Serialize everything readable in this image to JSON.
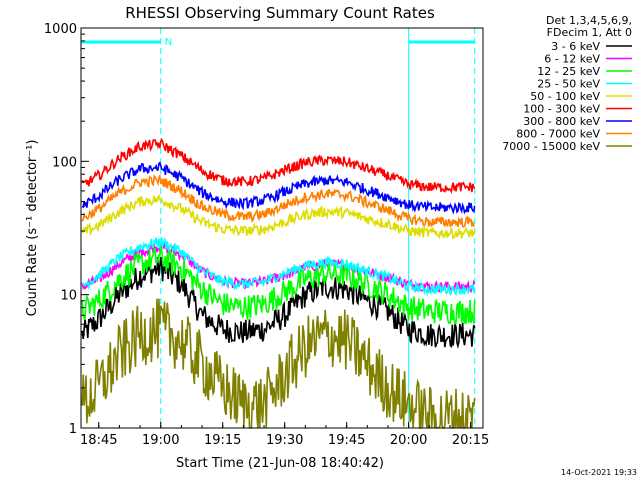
{
  "chart_data": {
    "type": "line",
    "title": "RHESSI Observing Summary Count Rates",
    "xlabel": "Start Time (21-Jun-08 18:40:42)",
    "ylabel": "Count Rate (s⁻¹ detector⁻¹)",
    "yscale": "log",
    "ylim": [
      1,
      1000
    ],
    "xlim": [
      "18:40:42",
      "20:18:00"
    ],
    "x_ticks": [
      "18:45",
      "19:00",
      "19:15",
      "19:30",
      "19:45",
      "20:00",
      "20:15"
    ],
    "y_ticks": [
      "1",
      "10",
      "100",
      "1000"
    ],
    "legend_header": [
      "Det 1,3,4,5,6,9,",
      "FDecim 1, Att 0"
    ],
    "legend_position": "right",
    "footer_date": "14-Oct-2021 19:33",
    "annotations": [
      {
        "text": "N",
        "at": "19:00"
      }
    ],
    "cyan_bars": [
      {
        "from": "18:40:42",
        "to": "19:00"
      },
      {
        "from": "20:00",
        "to": "20:16"
      }
    ],
    "vertical_lines_dashed": [
      "19:00",
      "20:16"
    ],
    "vertical_lines_solid": [
      "18:40:42",
      "20:00"
    ],
    "x_times": [
      "18:41",
      "18:45",
      "18:50",
      "18:55",
      "19:00",
      "19:05",
      "19:10",
      "19:15",
      "19:20",
      "19:25",
      "19:30",
      "19:35",
      "19:40",
      "19:45",
      "19:50",
      "19:55",
      "20:00",
      "20:05",
      "20:10",
      "20:16"
    ],
    "series": [
      {
        "name": "3 - 6 keV",
        "color": "#000000",
        "values": [
          5.0,
          6.5,
          10,
          14,
          16,
          12,
          7,
          5.5,
          5.2,
          5.5,
          7,
          10,
          11.5,
          11,
          9,
          7.5,
          5.5,
          5.0,
          5.0,
          5.0
        ]
      },
      {
        "name": "6 - 12 keV",
        "color": "#ff00ff",
        "values": [
          11.5,
          13,
          17,
          21,
          23,
          20,
          15,
          12.5,
          12,
          12.5,
          14,
          16,
          17,
          16.5,
          15,
          13.5,
          12,
          11.5,
          11.5,
          11.5
        ]
      },
      {
        "name": "12 - 25 keV",
        "color": "#00ff00",
        "values": [
          7.5,
          9,
          13,
          17,
          19,
          16,
          11,
          8.5,
          8,
          8.5,
          10.5,
          13,
          14.5,
          14,
          12,
          10,
          8,
          7.5,
          7.5,
          7.5
        ]
      },
      {
        "name": "25 - 50 keV",
        "color": "#00ffff",
        "values": [
          11.5,
          14,
          19,
          23,
          25,
          21,
          15,
          12.5,
          12,
          12.5,
          14.5,
          16.5,
          17.5,
          17,
          15,
          13.5,
          11.5,
          11,
          11,
          11
        ]
      },
      {
        "name": "50 - 100 keV",
        "color": "#dddd00",
        "values": [
          29,
          33,
          42,
          50,
          52,
          44,
          35,
          31,
          30,
          31,
          35,
          40,
          42,
          41,
          37,
          34,
          30,
          29,
          29,
          29
        ]
      },
      {
        "name": "100 - 300 keV",
        "color": "#ff0000",
        "values": [
          66,
          78,
          105,
          130,
          135,
          110,
          85,
          72,
          70,
          74,
          86,
          98,
          102,
          99,
          88,
          78,
          67,
          64,
          64,
          64
        ]
      },
      {
        "name": "300 - 800 keV",
        "color": "#0000ff",
        "values": [
          46,
          55,
          73,
          88,
          90,
          75,
          58,
          50,
          48,
          51,
          59,
          68,
          72,
          70,
          61,
          54,
          47,
          45,
          45,
          45
        ]
      },
      {
        "name": "800 - 7000 keV",
        "color": "#ff8000",
        "values": [
          37,
          44,
          58,
          70,
          72,
          60,
          46,
          40,
          38,
          40,
          47,
          54,
          57,
          56,
          49,
          43,
          37,
          35,
          35,
          35
        ]
      },
      {
        "name": "7000 - 15000 keV",
        "color": "#808000",
        "values": [
          1.5,
          2,
          3.5,
          5,
          5.5,
          4.5,
          3,
          2,
          1.5,
          1.5,
          2.5,
          4,
          5,
          4.5,
          3,
          2,
          1.5,
          1.2,
          1.2,
          1.2
        ]
      }
    ]
  }
}
